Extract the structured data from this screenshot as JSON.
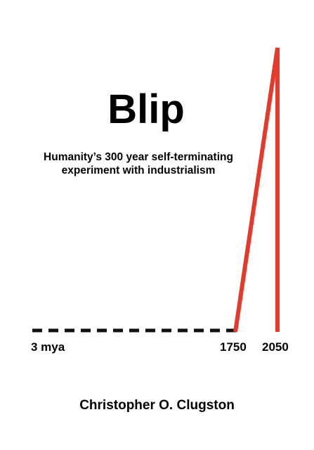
{
  "cover": {
    "title": "Blip",
    "subtitle_line1": "Humanity’s 300 year self-terminating",
    "subtitle_line2": "experiment with industrialism",
    "timeline": {
      "start_label": "3 mya",
      "industrial_label": "1750",
      "end_label": "2050",
      "dash_color": "#111111",
      "blip_color": "#e4392b"
    },
    "author": "Christopher O. Clugston"
  }
}
